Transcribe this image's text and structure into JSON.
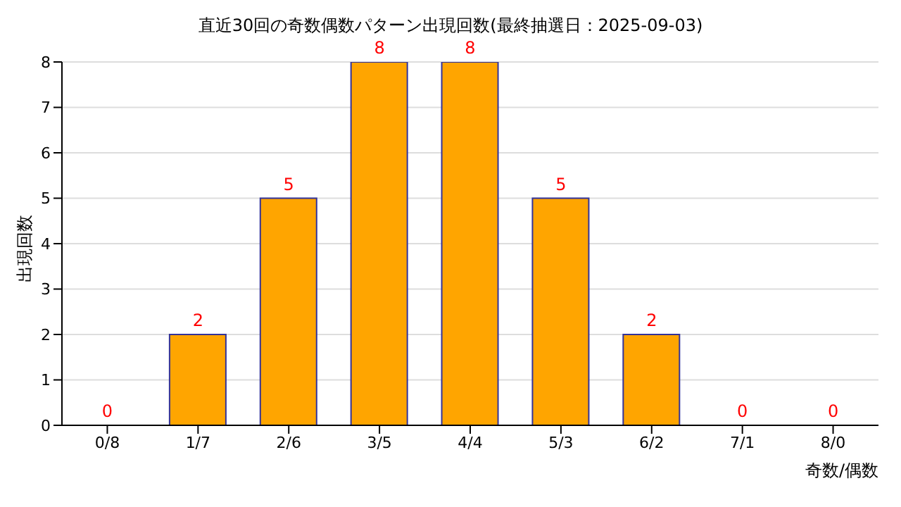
{
  "chart_data": {
    "type": "bar",
    "title": "直近30回の奇数偶数パターン出現回数(最終抽選日：2025-09-03)",
    "xlabel": "奇数/偶数",
    "ylabel": "出現回数",
    "categories": [
      "0/8",
      "1/7",
      "2/6",
      "3/5",
      "4/4",
      "5/3",
      "6/2",
      "7/1",
      "8/0"
    ],
    "values": [
      0,
      2,
      5,
      8,
      8,
      5,
      2,
      0,
      0
    ],
    "color": "#ffa500",
    "ylim": [
      0,
      8
    ],
    "yticks": [
      0,
      1,
      2,
      3,
      4,
      5,
      6,
      7,
      8
    ],
    "grid": "y",
    "data_labels": true,
    "legend": false
  }
}
